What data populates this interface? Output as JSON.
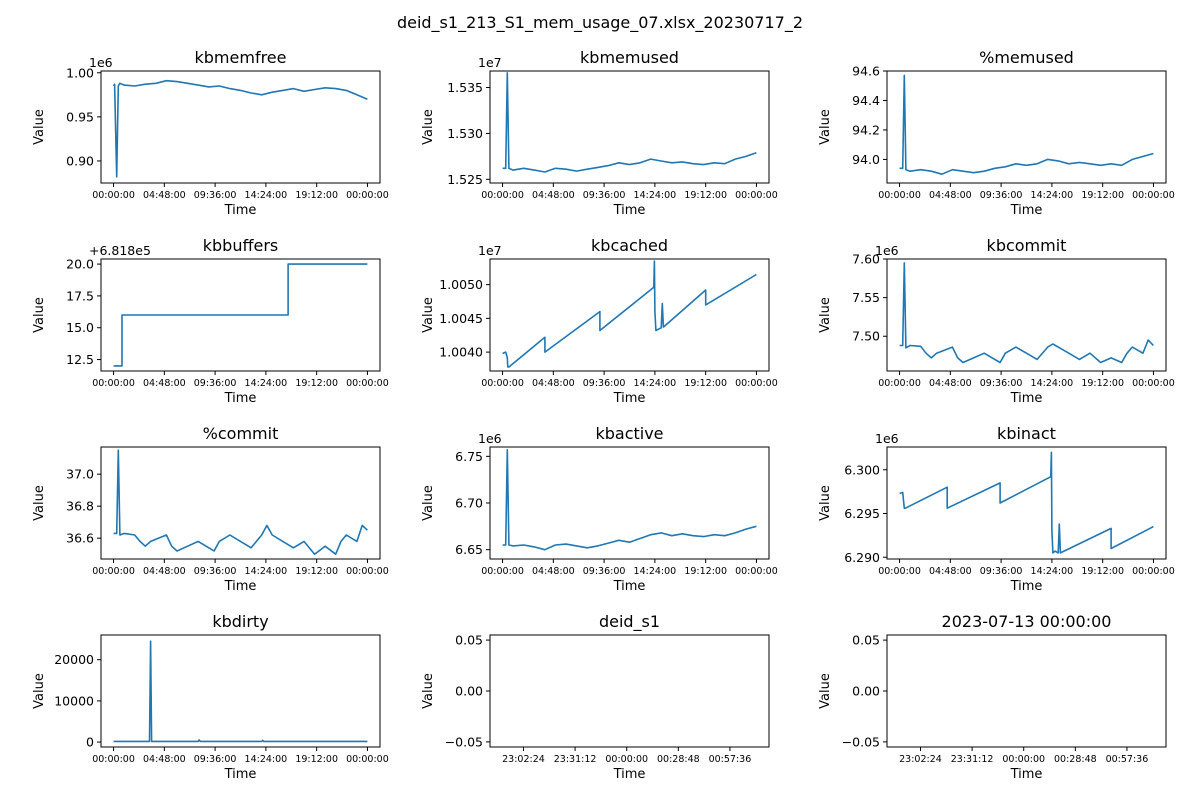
{
  "suptitle": "deid_s1_213_S1_mem_usage_07.xlsx_20230717_2",
  "colors": {
    "series": "#1f77b4",
    "axes": "#000000",
    "background": "#ffffff"
  },
  "chart_data": [
    {
      "type": "line",
      "title": "kbmemfree",
      "xlabel": "Time",
      "ylabel": "Value",
      "offset_text": "1e6",
      "ylim": [
        0.875,
        1.002
      ],
      "yticks": [
        0.9,
        0.95,
        1.0
      ],
      "ytick_labels": [
        "0.90",
        "0.95",
        "1.00"
      ],
      "xticks": [
        "00:00:00",
        "04:48:00",
        "09:36:00",
        "14:24:00",
        "19:12:00",
        "00:00:00"
      ],
      "series": [
        {
          "x_hours": [
            0,
            0.1,
            0.3,
            0.45,
            0.6,
            1,
            2,
            3,
            4,
            5,
            6,
            7,
            8,
            9,
            10,
            11,
            12,
            13,
            14,
            15,
            16,
            17,
            18,
            19,
            20,
            21,
            22,
            23,
            24
          ],
          "values": [
            0.985,
            0.987,
            0.882,
            0.985,
            0.988,
            0.986,
            0.985,
            0.987,
            0.988,
            0.991,
            0.99,
            0.988,
            0.986,
            0.984,
            0.985,
            0.982,
            0.98,
            0.977,
            0.975,
            0.978,
            0.98,
            0.982,
            0.979,
            0.981,
            0.983,
            0.982,
            0.98,
            0.975,
            0.97
          ]
        }
      ]
    },
    {
      "type": "line",
      "title": "kbmemused",
      "xlabel": "Time",
      "ylabel": "Value",
      "offset_text": "1e7",
      "ylim": [
        1.5246,
        1.5368
      ],
      "yticks": [
        1.525,
        1.53,
        1.535
      ],
      "ytick_labels": [
        "1.525",
        "1.530",
        "1.535"
      ],
      "xticks": [
        "00:00:00",
        "04:48:00",
        "09:36:00",
        "14:24:00",
        "19:12:00",
        "00:00:00"
      ],
      "series": [
        {
          "x_hours": [
            0,
            0.3,
            0.45,
            0.6,
            1,
            2,
            3,
            4,
            5,
            6,
            7,
            8,
            9,
            10,
            11,
            12,
            13,
            14,
            15,
            16,
            17,
            18,
            19,
            20,
            21,
            22,
            23,
            24
          ],
          "values": [
            1.5262,
            1.5262,
            1.5366,
            1.5262,
            1.526,
            1.5262,
            1.526,
            1.5258,
            1.5262,
            1.5261,
            1.5259,
            1.5261,
            1.5263,
            1.5265,
            1.5268,
            1.5266,
            1.5268,
            1.5272,
            1.527,
            1.5268,
            1.5269,
            1.5267,
            1.5266,
            1.5268,
            1.5267,
            1.5272,
            1.5275,
            1.5279
          ]
        }
      ]
    },
    {
      "type": "line",
      "title": "%memused",
      "xlabel": "Time",
      "ylabel": "Value",
      "ylim": [
        93.84,
        94.6
      ],
      "yticks": [
        94.0,
        94.2,
        94.4,
        94.6
      ],
      "ytick_labels": [
        "94.0",
        "94.2",
        "94.4",
        "94.6"
      ],
      "xticks": [
        "00:00:00",
        "04:48:00",
        "09:36:00",
        "14:24:00",
        "19:12:00",
        "00:00:00"
      ],
      "series": [
        {
          "x_hours": [
            0,
            0.3,
            0.45,
            0.6,
            1,
            2,
            3,
            4,
            5,
            6,
            7,
            8,
            9,
            10,
            11,
            12,
            13,
            14,
            15,
            16,
            17,
            18,
            19,
            20,
            21,
            22,
            23,
            24
          ],
          "values": [
            93.94,
            93.94,
            94.57,
            93.93,
            93.92,
            93.93,
            93.92,
            93.9,
            93.93,
            93.92,
            93.91,
            93.92,
            93.94,
            93.95,
            93.97,
            93.96,
            93.97,
            94.0,
            93.99,
            93.97,
            93.98,
            93.97,
            93.96,
            93.97,
            93.96,
            94.0,
            94.02,
            94.04
          ]
        }
      ]
    },
    {
      "type": "line",
      "title": "kbbuffers",
      "xlabel": "Time",
      "ylabel": "Value",
      "offset_text": "+6.818e5",
      "ylim": [
        11.6,
        20.4
      ],
      "yticks": [
        12.5,
        15.0,
        17.5,
        20.0
      ],
      "ytick_labels": [
        "12.5",
        "15.0",
        "17.5",
        "20.0"
      ],
      "xticks": [
        "00:00:00",
        "04:48:00",
        "09:36:00",
        "14:24:00",
        "19:12:00",
        "00:00:00"
      ],
      "series": [
        {
          "x_hours": [
            0,
            0.8,
            0.8,
            16.5,
            16.5,
            24
          ],
          "values": [
            12,
            12,
            16,
            16,
            20,
            20
          ]
        }
      ]
    },
    {
      "type": "line",
      "title": "kbcached",
      "xlabel": "Time",
      "ylabel": "Value",
      "offset_text": "1e7",
      "ylim": [
        1.00372,
        1.00538
      ],
      "yticks": [
        1.004,
        1.0045,
        1.005
      ],
      "ytick_labels": [
        "1.0040",
        "1.0045",
        "1.0050"
      ],
      "xticks": [
        "00:00:00",
        "04:48:00",
        "09:36:00",
        "14:24:00",
        "19:12:00",
        "00:00:00"
      ],
      "series": [
        {
          "x_hours": [
            0,
            0.3,
            0.45,
            0.5,
            0.6,
            4,
            4,
            9.2,
            9.2,
            14.3,
            14.35,
            14.4,
            14.5,
            15,
            15.1,
            15.2,
            19.2,
            19.2,
            24
          ],
          "values": [
            1.00398,
            1.004,
            1.00392,
            1.00378,
            1.00378,
            1.00422,
            1.004,
            1.0046,
            1.00432,
            1.00496,
            1.00535,
            1.0046,
            1.00432,
            1.00436,
            1.00472,
            1.00437,
            1.00492,
            1.0047,
            1.00515
          ]
        }
      ]
    },
    {
      "type": "line",
      "title": "kbcommit",
      "xlabel": "Time",
      "ylabel": "Value",
      "offset_text": "1e6",
      "ylim": [
        7.455,
        7.6
      ],
      "yticks": [
        7.5,
        7.55,
        7.6
      ],
      "ytick_labels": [
        "7.50",
        "7.55",
        "7.60"
      ],
      "xticks": [
        "00:00:00",
        "04:48:00",
        "09:36:00",
        "14:24:00",
        "19:12:00",
        "00:00:00"
      ],
      "series": [
        {
          "x_hours": [
            0,
            0.3,
            0.45,
            0.6,
            1,
            2,
            2.5,
            3,
            3.5,
            5,
            5.5,
            6,
            7,
            8,
            9,
            9.5,
            10,
            11,
            12,
            13,
            14,
            14.5,
            15,
            16,
            17,
            18,
            19,
            20,
            21,
            21.5,
            22,
            23,
            23.5,
            24
          ],
          "values": [
            7.488,
            7.488,
            7.595,
            7.485,
            7.488,
            7.487,
            7.478,
            7.472,
            7.478,
            7.486,
            7.472,
            7.466,
            7.472,
            7.478,
            7.47,
            7.466,
            7.478,
            7.486,
            7.478,
            7.47,
            7.486,
            7.49,
            7.486,
            7.478,
            7.47,
            7.478,
            7.466,
            7.472,
            7.466,
            7.478,
            7.486,
            7.478,
            7.495,
            7.488
          ]
        }
      ]
    },
    {
      "type": "line",
      "title": "%commit",
      "xlabel": "Time",
      "ylabel": "Value",
      "ylim": [
        36.47,
        37.17
      ],
      "yticks": [
        36.6,
        36.8,
        37.0
      ],
      "ytick_labels": [
        "36.6",
        "36.8",
        "37.0"
      ],
      "xticks": [
        "00:00:00",
        "04:48:00",
        "09:36:00",
        "14:24:00",
        "19:12:00",
        "00:00:00"
      ],
      "series": [
        {
          "x_hours": [
            0,
            0.3,
            0.45,
            0.6,
            1,
            2,
            2.5,
            3,
            3.5,
            5,
            5.5,
            6,
            7,
            8,
            9,
            9.5,
            10,
            11,
            12,
            13,
            14,
            14.5,
            15,
            16,
            17,
            18,
            19,
            20,
            21,
            21.5,
            22,
            23,
            23.5,
            24
          ],
          "values": [
            36.63,
            36.63,
            37.15,
            36.62,
            36.63,
            36.62,
            36.58,
            36.55,
            36.58,
            36.62,
            36.55,
            36.52,
            36.55,
            36.58,
            36.54,
            36.52,
            36.58,
            36.62,
            36.58,
            36.54,
            36.62,
            36.68,
            36.62,
            36.58,
            36.54,
            36.58,
            36.5,
            36.55,
            36.5,
            36.58,
            36.62,
            36.58,
            36.68,
            36.65
          ]
        }
      ]
    },
    {
      "type": "line",
      "title": "kbactive",
      "xlabel": "Time",
      "ylabel": "Value",
      "offset_text": "1e6",
      "ylim": [
        6.64,
        6.76
      ],
      "yticks": [
        6.65,
        6.7,
        6.75
      ],
      "ytick_labels": [
        "6.65",
        "6.70",
        "6.75"
      ],
      "xticks": [
        "00:00:00",
        "04:48:00",
        "09:36:00",
        "14:24:00",
        "19:12:00",
        "00:00:00"
      ],
      "series": [
        {
          "x_hours": [
            0,
            0.3,
            0.45,
            0.6,
            1,
            2,
            3,
            4,
            5,
            6,
            7,
            8,
            9,
            10,
            11,
            12,
            13,
            14,
            15,
            16,
            17,
            18,
            19,
            20,
            21,
            22,
            23,
            24
          ],
          "values": [
            6.655,
            6.655,
            6.757,
            6.655,
            6.654,
            6.655,
            6.653,
            6.65,
            6.655,
            6.656,
            6.654,
            6.652,
            6.654,
            6.657,
            6.66,
            6.658,
            6.662,
            6.666,
            6.668,
            6.665,
            6.667,
            6.665,
            6.664,
            6.666,
            6.665,
            6.668,
            6.672,
            6.675
          ]
        }
      ]
    },
    {
      "type": "line",
      "title": "kbinact",
      "xlabel": "Time",
      "ylabel": "Value",
      "offset_text": "1e6",
      "ylim": [
        6.2898,
        6.3026
      ],
      "yticks": [
        6.29,
        6.295,
        6.3
      ],
      "ytick_labels": [
        "6.290",
        "6.295",
        "6.300"
      ],
      "xticks": [
        "00:00:00",
        "04:48:00",
        "09:36:00",
        "14:24:00",
        "19:12:00",
        "00:00:00"
      ],
      "series": [
        {
          "x_hours": [
            0,
            0.3,
            0.45,
            0.55,
            4.5,
            4.5,
            9.5,
            9.5,
            14.3,
            14.35,
            14.4,
            14.5,
            14.7,
            15,
            15.1,
            15.2,
            20,
            20,
            24
          ],
          "values": [
            6.2973,
            6.2974,
            6.2956,
            6.2956,
            6.298,
            6.2956,
            6.2985,
            6.2962,
            6.2992,
            6.302,
            6.293,
            6.2905,
            6.2907,
            6.2905,
            6.2938,
            6.2905,
            6.2933,
            6.291,
            6.2935
          ]
        }
      ]
    },
    {
      "type": "line",
      "title": "kbdirty",
      "xlabel": "Time",
      "ylabel": "Value",
      "ylim": [
        -1200,
        26000
      ],
      "yticks": [
        0,
        10000,
        20000
      ],
      "ytick_labels": [
        "0",
        "10000",
        "20000"
      ],
      "xticks": [
        "00:00:00",
        "04:48:00",
        "09:36:00",
        "14:24:00",
        "19:12:00",
        "00:00:00"
      ],
      "series": [
        {
          "x_hours": [
            0,
            3.4,
            3.5,
            3.6,
            8,
            8.1,
            8.2,
            14,
            14.1,
            14.2,
            24
          ],
          "values": [
            150,
            150,
            24500,
            150,
            150,
            500,
            150,
            150,
            400,
            150,
            150
          ]
        }
      ]
    },
    {
      "type": "line",
      "title": "deid_s1",
      "xlabel": "Time",
      "ylabel": "Value",
      "ylim": [
        -0.055,
        0.055
      ],
      "yticks": [
        -0.05,
        0.0,
        0.05
      ],
      "ytick_labels": [
        "−0.05",
        "0.00",
        "0.05"
      ],
      "xticks": [
        "23:02:24",
        "23:31:12",
        "00:00:00",
        "00:28:48",
        "00:57:36"
      ],
      "series": []
    },
    {
      "type": "line",
      "title": "2023-07-13 00:00:00",
      "xlabel": "Time",
      "ylabel": "Value",
      "ylim": [
        -0.055,
        0.055
      ],
      "yticks": [
        -0.05,
        0.0,
        0.05
      ],
      "ytick_labels": [
        "−0.05",
        "0.00",
        "0.05"
      ],
      "xticks": [
        "23:02:24",
        "23:31:12",
        "00:00:00",
        "00:28:48",
        "00:57:36"
      ],
      "series": []
    }
  ]
}
